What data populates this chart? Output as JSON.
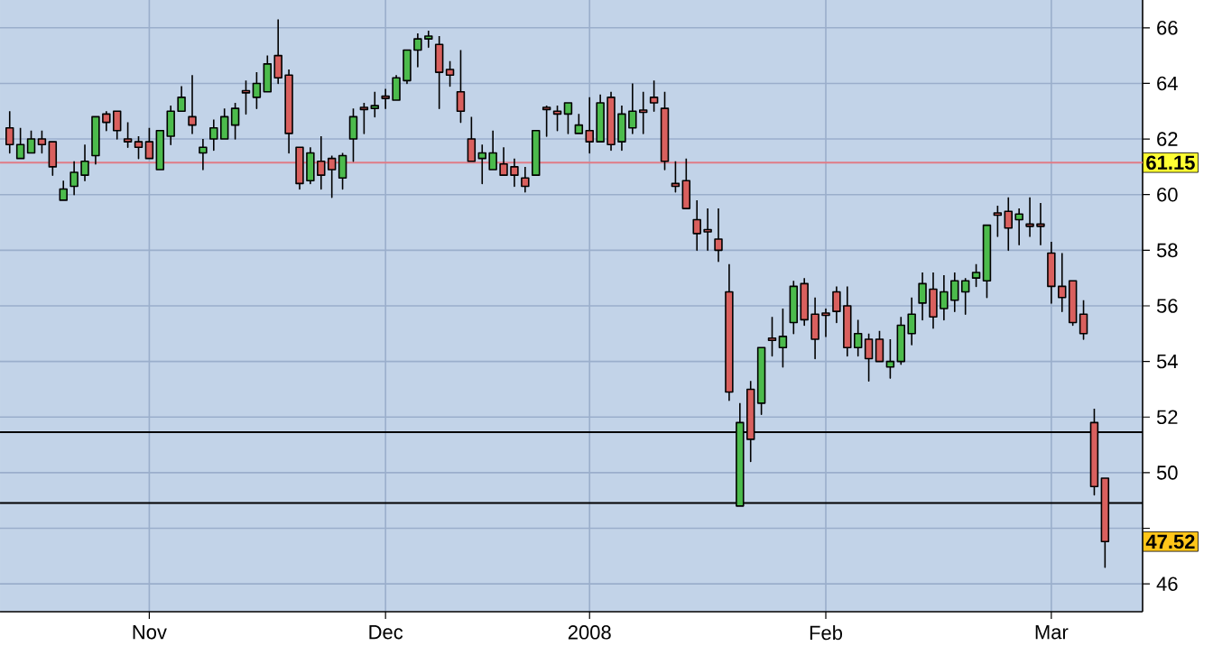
{
  "chart_data": {
    "type": "candlestick",
    "categories": [
      null,
      null,
      null,
      null,
      null,
      null,
      null,
      null,
      null,
      null,
      null,
      null,
      null,
      "Nov",
      null,
      null,
      null,
      null,
      null,
      null,
      null,
      null,
      null,
      null,
      null,
      null,
      null,
      null,
      null,
      null,
      null,
      null,
      null,
      null,
      null,
      "Dec",
      null,
      null,
      null,
      null,
      null,
      null,
      null,
      null,
      null,
      null,
      null,
      null,
      null,
      null,
      null,
      null,
      null,
      null,
      "2008",
      null,
      null,
      null,
      null,
      null,
      null,
      null,
      null,
      null,
      null,
      null,
      null,
      null,
      null,
      null,
      null,
      null,
      null,
      null,
      null,
      null,
      "Feb",
      null,
      null,
      null,
      null,
      null,
      null,
      null,
      null,
      null,
      null,
      null,
      null,
      null,
      null,
      null,
      null,
      null,
      null,
      null,
      null,
      "Mar",
      null,
      null,
      null,
      null,
      null
    ],
    "ohlc": [
      [
        62.4,
        63.0,
        61.5,
        61.8
      ],
      [
        61.3,
        62.4,
        61.3,
        61.8
      ],
      [
        61.5,
        62.3,
        61.5,
        62.0
      ],
      [
        62.0,
        62.3,
        61.5,
        61.8
      ],
      [
        61.9,
        61.9,
        60.7,
        61.0
      ],
      [
        59.8,
        60.5,
        59.8,
        60.2
      ],
      [
        60.3,
        61.2,
        60.0,
        60.8
      ],
      [
        60.7,
        61.8,
        60.5,
        61.2
      ],
      [
        61.4,
        62.8,
        61.1,
        62.8
      ],
      [
        62.9,
        63.0,
        62.3,
        62.6
      ],
      [
        63.0,
        63.0,
        62.0,
        62.3
      ],
      [
        62.0,
        62.6,
        61.7,
        61.9
      ],
      [
        61.9,
        62.1,
        61.3,
        61.7
      ],
      [
        61.9,
        62.4,
        61.3,
        61.3
      ],
      [
        60.9,
        62.3,
        60.9,
        62.3
      ],
      [
        62.1,
        63.2,
        61.8,
        63.0
      ],
      [
        63.0,
        63.9,
        63.0,
        63.5
      ],
      [
        62.8,
        64.3,
        62.2,
        62.5
      ],
      [
        61.5,
        62.0,
        60.9,
        61.7
      ],
      [
        62.0,
        62.7,
        61.6,
        62.4
      ],
      [
        62.0,
        63.1,
        62.0,
        62.8
      ],
      [
        62.5,
        63.3,
        62.0,
        63.1
      ],
      [
        63.7,
        64.1,
        62.9,
        63.7
      ],
      [
        63.5,
        64.4,
        63.1,
        64.0
      ],
      [
        63.7,
        65.0,
        63.7,
        64.7
      ],
      [
        65.0,
        66.3,
        64.0,
        64.2
      ],
      [
        64.3,
        64.5,
        61.5,
        62.2
      ],
      [
        61.7,
        61.7,
        60.2,
        60.4
      ],
      [
        60.5,
        61.7,
        60.4,
        61.5
      ],
      [
        61.2,
        62.1,
        60.2,
        60.7
      ],
      [
        61.3,
        61.4,
        59.9,
        60.9
      ],
      [
        60.6,
        61.5,
        60.2,
        61.4
      ],
      [
        62.0,
        63.1,
        61.2,
        62.8
      ],
      [
        63.1,
        63.3,
        62.2,
        63.1
      ],
      [
        63.1,
        63.7,
        62.8,
        63.2
      ],
      [
        63.5,
        63.8,
        63.1,
        63.5
      ],
      [
        63.4,
        64.3,
        63.4,
        64.2
      ],
      [
        64.1,
        65.2,
        64.0,
        65.2
      ],
      [
        65.2,
        65.8,
        64.6,
        65.6
      ],
      [
        65.6,
        65.9,
        65.3,
        65.7
      ],
      [
        65.4,
        65.7,
        63.1,
        64.4
      ],
      [
        64.5,
        64.8,
        63.9,
        64.3
      ],
      [
        63.7,
        65.2,
        62.6,
        63.0
      ],
      [
        62.0,
        62.8,
        61.2,
        61.2
      ],
      [
        61.3,
        61.8,
        60.4,
        61.5
      ],
      [
        60.9,
        62.3,
        60.9,
        61.5
      ],
      [
        61.1,
        61.7,
        60.7,
        60.7
      ],
      [
        61.0,
        61.3,
        60.3,
        60.7
      ],
      [
        60.6,
        61.0,
        60.1,
        60.3
      ],
      [
        60.7,
        62.3,
        60.7,
        62.3
      ],
      [
        63.1,
        63.2,
        62.1,
        63.1
      ],
      [
        63.0,
        63.2,
        62.3,
        62.9
      ],
      [
        62.9,
        63.3,
        62.2,
        63.3
      ],
      [
        62.2,
        62.9,
        62.2,
        62.5
      ],
      [
        62.3,
        63.5,
        61.5,
        61.9
      ],
      [
        61.9,
        63.6,
        61.9,
        63.3
      ],
      [
        63.5,
        63.7,
        61.6,
        61.8
      ],
      [
        61.9,
        63.2,
        61.6,
        62.9
      ],
      [
        62.4,
        64.0,
        62.2,
        63.0
      ],
      [
        63.0,
        63.7,
        62.2,
        63.0
      ],
      [
        63.5,
        64.1,
        63.0,
        63.3
      ],
      [
        63.1,
        63.7,
        60.9,
        61.2
      ],
      [
        60.4,
        61.2,
        60.1,
        60.3
      ],
      [
        60.5,
        61.3,
        59.5,
        59.5
      ],
      [
        59.1,
        59.8,
        58.0,
        58.6
      ],
      [
        58.7,
        59.5,
        58.0,
        58.7
      ],
      [
        58.4,
        59.5,
        57.6,
        58.0
      ],
      [
        56.5,
        57.5,
        52.6,
        52.9
      ],
      [
        48.8,
        52.5,
        48.8,
        51.8
      ],
      [
        53.0,
        53.3,
        50.4,
        51.2
      ],
      [
        52.5,
        54.5,
        52.1,
        54.5
      ],
      [
        54.8,
        55.6,
        54.2,
        54.8
      ],
      [
        54.5,
        55.9,
        53.8,
        54.9
      ],
      [
        55.4,
        56.9,
        55.0,
        56.7
      ],
      [
        56.8,
        57.0,
        55.3,
        55.5
      ],
      [
        55.7,
        56.3,
        54.1,
        54.8
      ],
      [
        55.7,
        55.9,
        54.9,
        55.7
      ],
      [
        56.5,
        56.7,
        55.4,
        55.8
      ],
      [
        56.0,
        56.7,
        54.2,
        54.5
      ],
      [
        54.5,
        55.5,
        54.2,
        55.0
      ],
      [
        54.8,
        55.0,
        53.3,
        54.1
      ],
      [
        54.8,
        55.1,
        54.0,
        54.0
      ],
      [
        53.8,
        54.8,
        53.4,
        54.0
      ],
      [
        54.0,
        55.6,
        53.9,
        55.3
      ],
      [
        55.0,
        56.3,
        54.6,
        55.7
      ],
      [
        56.1,
        57.2,
        55.5,
        56.8
      ],
      [
        56.6,
        57.2,
        55.2,
        55.6
      ],
      [
        55.9,
        57.1,
        55.5,
        56.5
      ],
      [
        56.2,
        57.2,
        55.8,
        56.9
      ],
      [
        56.5,
        57.0,
        55.7,
        56.9
      ],
      [
        57.0,
        57.5,
        56.7,
        57.2
      ],
      [
        56.9,
        58.9,
        56.3,
        58.9
      ],
      [
        59.3,
        59.6,
        58.5,
        59.3
      ],
      [
        59.4,
        59.9,
        58.0,
        58.8
      ],
      [
        59.1,
        59.5,
        58.2,
        59.3
      ],
      [
        58.9,
        59.9,
        58.5,
        58.9
      ],
      [
        58.9,
        59.7,
        58.2,
        58.9
      ],
      [
        57.9,
        58.3,
        56.1,
        56.7
      ],
      [
        56.7,
        57.9,
        55.8,
        56.3
      ],
      [
        56.9,
        56.9,
        55.3,
        55.4
      ],
      [
        55.7,
        56.2,
        54.8,
        55.0
      ],
      [
        51.8,
        52.3,
        49.2,
        49.5
      ],
      [
        49.8,
        49.8,
        46.6,
        47.52
      ]
    ],
    "ylim": [
      45,
      67
    ],
    "yticks": [
      46,
      {
        "value": 48,
        "label": null
      },
      50,
      52,
      54,
      56,
      58,
      60,
      62,
      64,
      66
    ],
    "grid": true,
    "ref_lines": [
      {
        "axis": "y",
        "value": 61.15,
        "label": "61.15",
        "color": "#e07b86"
      },
      {
        "axis": "y",
        "value": 51.46,
        "color": "#000000"
      },
      {
        "axis": "y",
        "value": 48.91,
        "color": "#000000"
      }
    ],
    "annotations": [
      "47.52"
    ]
  }
}
